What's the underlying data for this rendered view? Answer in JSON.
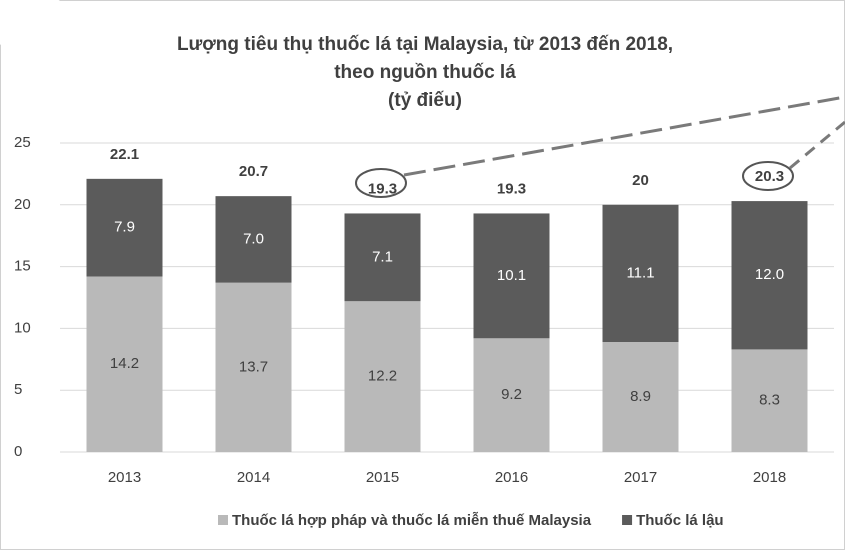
{
  "chart_data": {
    "type": "stacked_bar",
    "title": [
      "Lượng tiêu thụ thuốc lá tại Malaysia, từ 2013 đến 2018,",
      "theo nguồn thuốc lá",
      "(tỷ điếu)"
    ],
    "categories": [
      "2013",
      "2014",
      "2015",
      "2016",
      "2017",
      "2018"
    ],
    "series": [
      {
        "name": "Thuốc lá hợp pháp và thuốc lá miễn thuế Malaysia",
        "color": "#b9b9b9",
        "values": [
          14.2,
          13.7,
          12.2,
          9.2,
          8.9,
          8.3
        ],
        "value_labels": [
          "14.2",
          "13.7",
          "12.2",
          "9.2",
          "8.9",
          "8.3"
        ]
      },
      {
        "name": "Thuốc lá lậu",
        "color": "#5b5b5b",
        "values": [
          7.9,
          7.0,
          7.1,
          10.1,
          11.1,
          12.0
        ],
        "value_labels": [
          "7.9",
          "7.0",
          "7.1",
          "10.1",
          "11.1",
          "12.0"
        ]
      }
    ],
    "totals": [
      22.1,
      20.7,
      19.3,
      19.3,
      20,
      20.3
    ],
    "ylim": [
      0,
      25
    ],
    "yticks": [
      0,
      5,
      10,
      15,
      20,
      25
    ],
    "grid": true,
    "legend": "bottom"
  }
}
